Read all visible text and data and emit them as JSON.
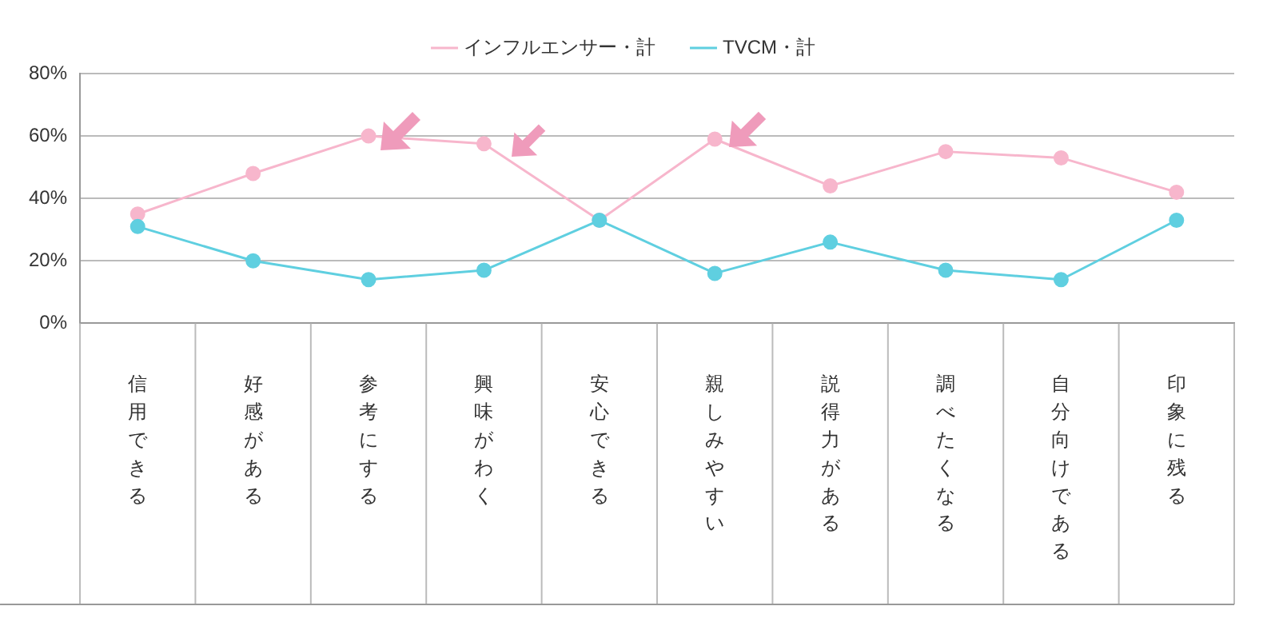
{
  "chart_data": {
    "type": "line",
    "categories": [
      "信用できる",
      "好感がある",
      "参考にする",
      "興味がわく",
      "安心できる",
      "親しみやすい",
      "説得力がある",
      "調べたくなる",
      "自分向けである",
      "印象に残る"
    ],
    "series": [
      {
        "name": "インフルエンサー・計",
        "color": "#f7b6cc",
        "values": [
          35,
          48,
          60,
          57.5,
          33,
          59,
          44,
          55,
          53,
          42
        ]
      },
      {
        "name": "TVCM・計",
        "color": "#5fcfe0",
        "values": [
          31,
          20,
          14,
          17,
          33,
          16,
          26,
          17,
          14,
          33
        ]
      }
    ],
    "ylim": [
      0,
      80
    ],
    "yticks": [
      {
        "value": 0,
        "label": "0%"
      },
      {
        "value": 20,
        "label": "20%"
      },
      {
        "value": 40,
        "label": "40%"
      },
      {
        "value": 60,
        "label": "60%"
      },
      {
        "value": 80,
        "label": "80%"
      }
    ],
    "grid": "y",
    "legend": "top",
    "marker": "circle",
    "line_style": "solid"
  }
}
